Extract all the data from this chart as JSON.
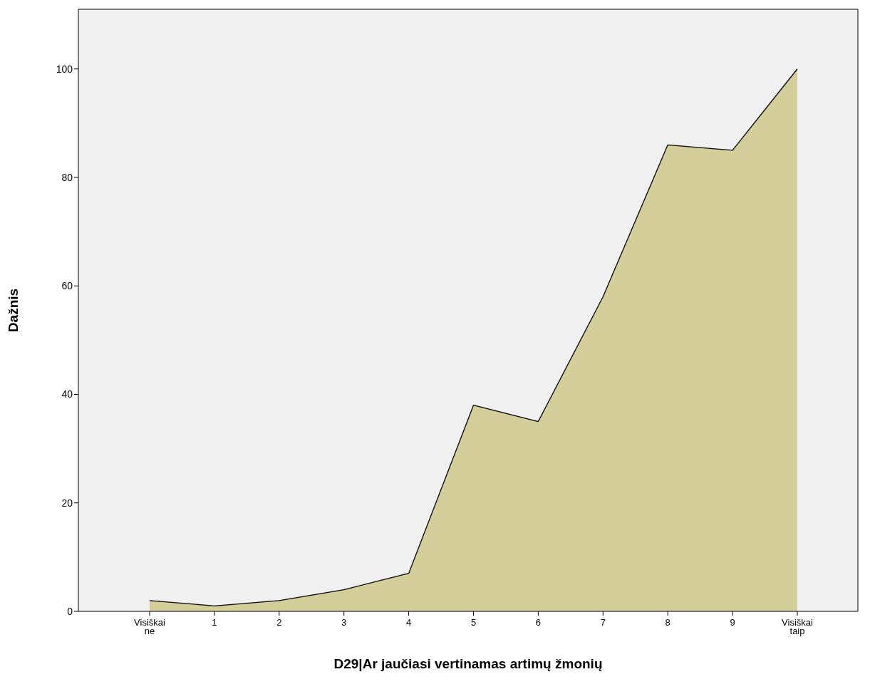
{
  "chart_data": {
    "type": "area",
    "xlabel": "D29|Ar jaučiasi vertinamas artimų žmonių",
    "ylabel": "Dažnis",
    "categories": [
      "Visiškai ne",
      "1",
      "2",
      "3",
      "4",
      "5",
      "6",
      "7",
      "8",
      "9",
      "Visiškai taip"
    ],
    "values": [
      2,
      1,
      2,
      4,
      7,
      38,
      35,
      58,
      86,
      85,
      100
    ],
    "color": "#d3ce9a",
    "ylim": [
      0,
      111
    ],
    "yticks": [
      0,
      20,
      40,
      60,
      80,
      100
    ],
    "grid": false,
    "legend": false
  }
}
